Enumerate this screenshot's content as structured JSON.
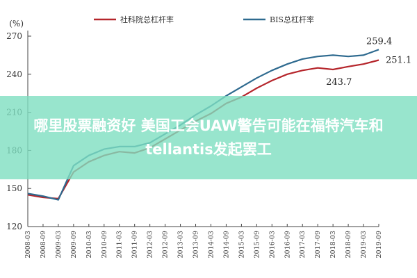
{
  "chart_data": {
    "type": "line",
    "ylabel": "(%)",
    "ylim": [
      120,
      270
    ],
    "yticks": [
      120,
      150,
      180,
      210,
      240,
      270
    ],
    "categories": [
      "2008-03",
      "2008-09",
      "2009-03",
      "2009-09",
      "2010-03",
      "2010-09",
      "2011-03",
      "2011-09",
      "2012-03",
      "2012-09",
      "2013-03",
      "2013-09",
      "2014-03",
      "2014-09",
      "2015-03",
      "2015-09",
      "2016-03",
      "2016-09",
      "2017-03",
      "2017-09",
      "2018-03",
      "2018-09",
      "2019-03",
      "2019-09"
    ],
    "grid": false,
    "legend_position": "top",
    "series": [
      {
        "name": "社科院总杠杆率",
        "color": "#b5252b",
        "values": [
          145.0,
          143.0,
          142.0,
          163.0,
          171.0,
          176.0,
          179.0,
          178.0,
          182.0,
          189.0,
          196.0,
          203.0,
          209.0,
          217.0,
          222.0,
          229.0,
          235.0,
          240.0,
          243.0,
          245.0,
          243.7,
          246.0,
          248.0,
          251.1
        ]
      },
      {
        "name": "BIS总杠杆率",
        "color": "#2e6a8f",
        "values": [
          146.0,
          144.0,
          141.0,
          168.0,
          176.0,
          181.0,
          183.0,
          183.0,
          186.0,
          193.0,
          200.0,
          208.0,
          215.0,
          223.0,
          230.0,
          237.0,
          243.0,
          248.0,
          252.0,
          254.0,
          255.0,
          254.0,
          255.0,
          259.4
        ]
      }
    ],
    "annotations": [
      "259.4",
      "251.1",
      "243.7"
    ]
  },
  "overlay": {
    "line1": "哪里股票融资好 美国工会UAW警告可能在福特汽车和",
    "line2": "tellantis发起罢工",
    "background": "#7edec0"
  }
}
